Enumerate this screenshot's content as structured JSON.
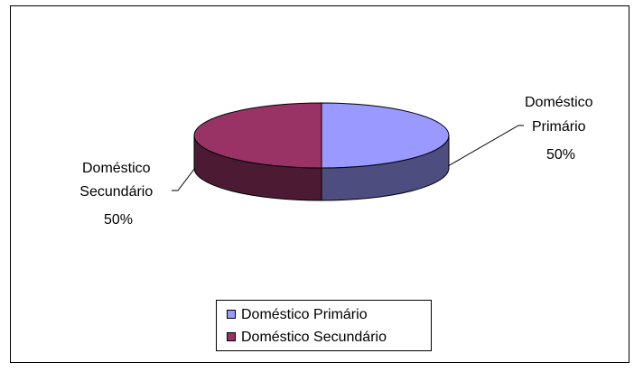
{
  "chart_data": {
    "type": "pie",
    "style": "3d",
    "categories": [
      "Doméstico Primário",
      "Doméstico Secundário"
    ],
    "values": [
      50,
      50
    ],
    "value_labels": [
      "50%",
      "50%"
    ],
    "data_label_lines": [
      [
        "Doméstico",
        "Primário",
        "50%"
      ],
      [
        "Doméstico",
        "Secundário",
        "50%"
      ]
    ],
    "colors": {
      "top": [
        "#9999FF",
        "#993366"
      ],
      "side": [
        "#4D4D80",
        "#4D1A33"
      ]
    },
    "legend": {
      "placement": "bottom",
      "entries": [
        "Doméstico Primário",
        "Doméstico Secundário"
      ]
    },
    "title": "",
    "grid": false
  }
}
